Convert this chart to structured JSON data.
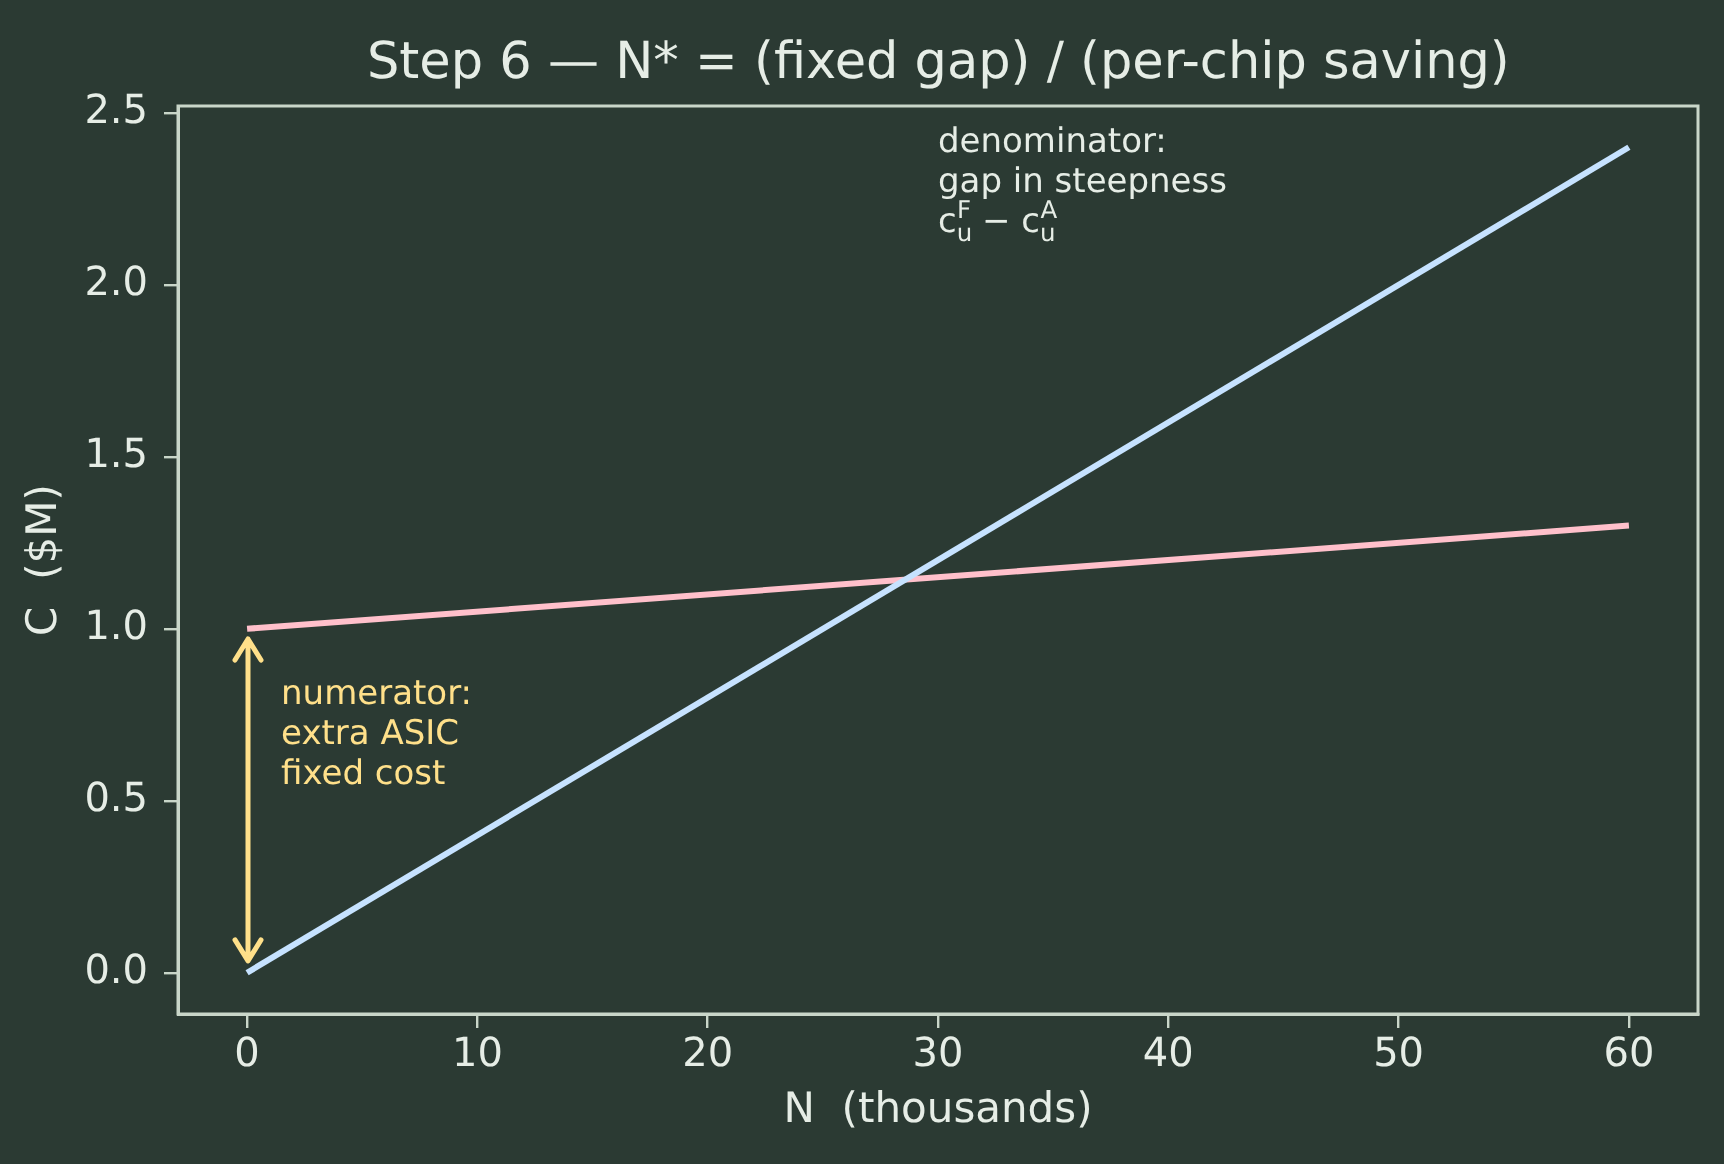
{
  "chart_data": {
    "type": "line",
    "title": "Step 6 — N* = (fixed gap) / (per-chip saving)",
    "xlabel": "N  (thousands)",
    "ylabel": "C  ($M)",
    "x": [
      0,
      60
    ],
    "series": [
      {
        "color": "#c6e2ff",
        "values": [
          0,
          2.4
        ]
      },
      {
        "color": "#ffc0cb",
        "values": [
          1.0,
          1.3
        ]
      }
    ],
    "xlim": [
      -3,
      63
    ],
    "xticks": [
      0,
      10,
      20,
      30,
      40,
      50,
      60
    ],
    "ylim": [
      -0.12,
      2.52
    ],
    "yticks": [
      {
        "value": 0,
        "label": "0.0"
      },
      0.5,
      {
        "value": 1,
        "label": "1.0"
      },
      1.5,
      {
        "value": 2,
        "label": "2.0"
      },
      2.5
    ],
    "marker": "none",
    "line_style": "solid",
    "annotations": [
      "denominator:\ngap in steepness\nc$_{u}$$^{F}$ − c$_{u}$$^{A}$",
      "numerator:\nextra ASIC\nfixed cost"
    ]
  }
}
